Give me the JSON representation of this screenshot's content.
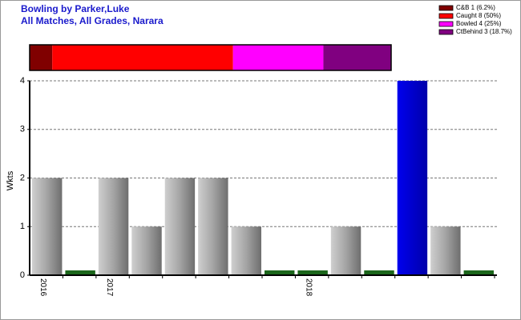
{
  "chart_data": [
    {
      "type": "bar",
      "title": "Bowling by Parker,Luke",
      "subtitle": "All Matches, All Grades, Narara",
      "y_label": "Wkts",
      "categories": [
        "2016",
        null,
        "2017",
        null,
        null,
        null,
        null,
        null,
        "2018",
        null,
        null,
        null,
        null,
        null
      ],
      "values": [
        2,
        0,
        2,
        1,
        2,
        2,
        1,
        0,
        0,
        1,
        0,
        4,
        1,
        0
      ],
      "colors": [
        "#a8a8a8",
        "#1b661b",
        "#a8a8a8",
        "#a8a8a8",
        "#a8a8a8",
        "#a8a8a8",
        "#a8a8a8",
        "#1b661b",
        "#1b661b",
        "#a8a8a8",
        "#1b661b",
        "#0000dd",
        "#a8a8a8",
        "#1b661b"
      ],
      "ylim": [
        0,
        4
      ],
      "yticks": [
        0,
        1,
        2,
        3,
        4
      ],
      "grid": true
    },
    {
      "type": "stacked-hbar",
      "xlim": [
        0,
        16
      ],
      "legend": "top-right",
      "series": [
        {
          "name": "C&B 1 (6.2%)",
          "color": "#800000",
          "values": [
            1
          ]
        },
        {
          "name": "Caught 8 (50%)",
          "color": "#ff0000",
          "values": [
            8
          ]
        },
        {
          "name": "Bowled 4 (25%)",
          "color": "#ff00ff",
          "values": [
            4
          ]
        },
        {
          "name": "CtBehind 3 (18.7%)",
          "color": "#800080",
          "values": [
            3
          ]
        }
      ]
    }
  ]
}
